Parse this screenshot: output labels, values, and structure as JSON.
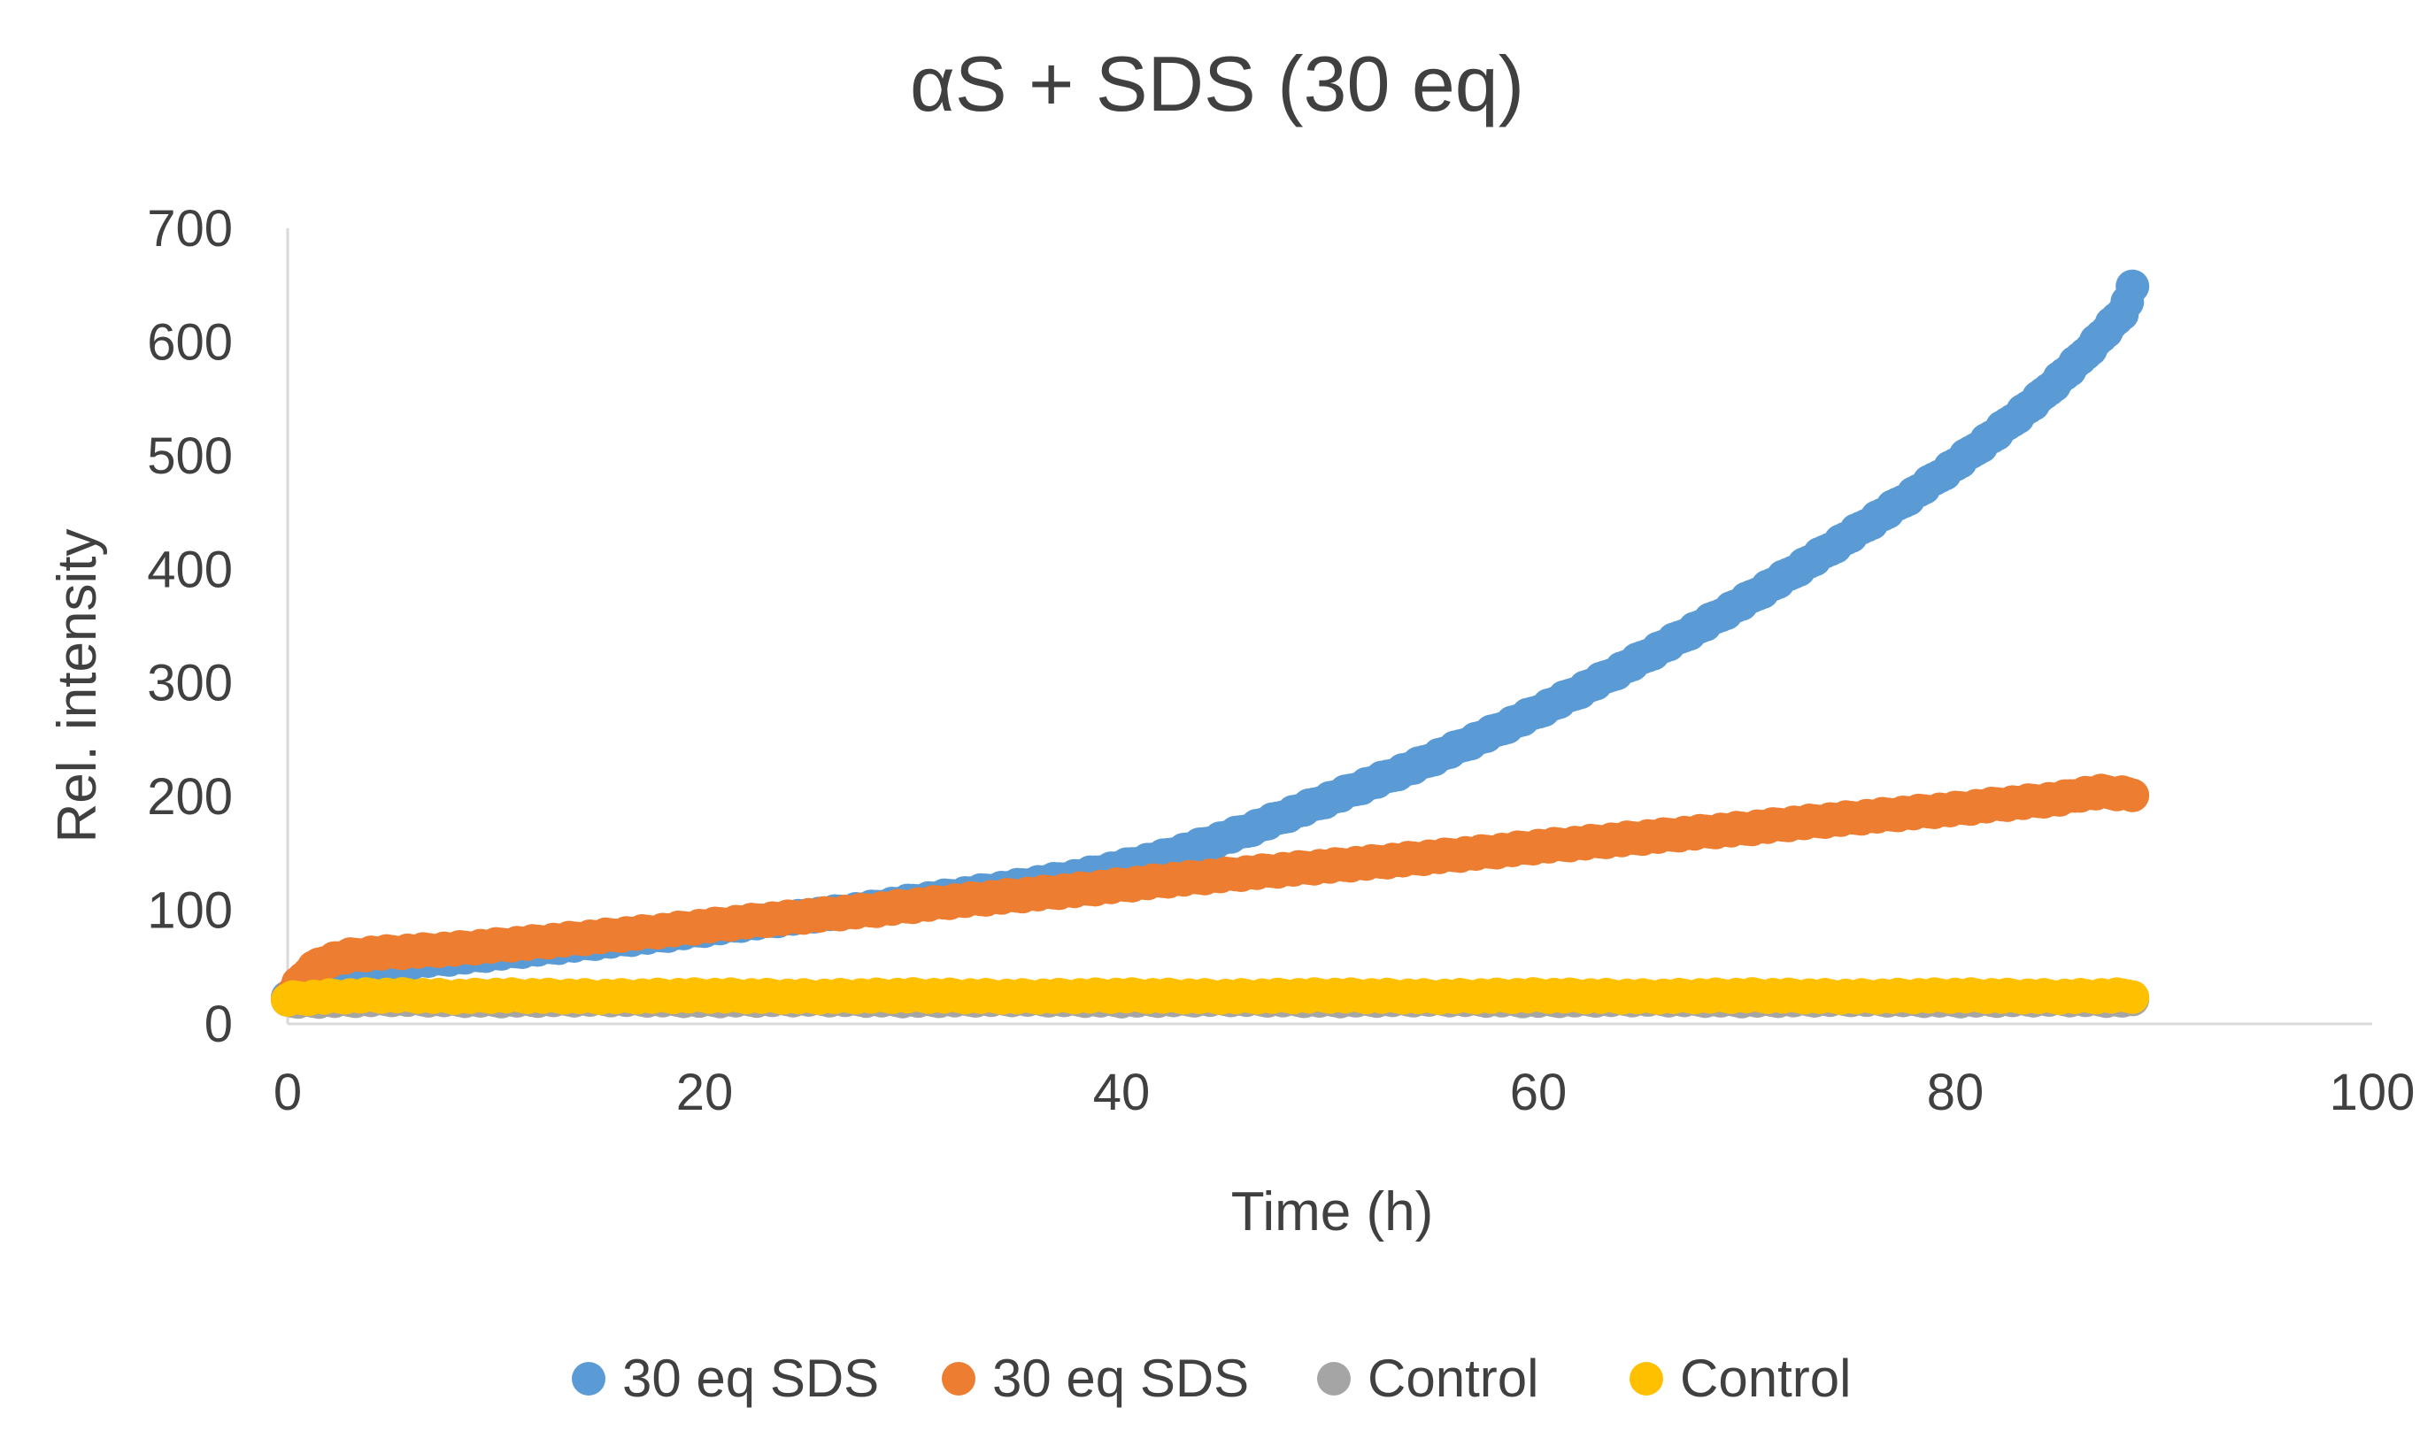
{
  "chart_data": {
    "type": "scatter",
    "title": "αS + SDS (30 eq)",
    "xlabel": "Time (h)",
    "ylabel": "Rel. intensity",
    "xlim": [
      0,
      100
    ],
    "ylim": [
      0,
      700
    ],
    "x_ticks": [
      0,
      20,
      40,
      60,
      80,
      100
    ],
    "y_ticks": [
      0,
      100,
      200,
      300,
      400,
      500,
      600,
      700
    ],
    "grid": false,
    "legend_position": "bottom",
    "series": [
      {
        "name": "30 eq SDS",
        "color": "#5B9BD5",
        "x": [
          0,
          1,
          2,
          3,
          4,
          5,
          6,
          8,
          10,
          12,
          15,
          18,
          20,
          22,
          25,
          28,
          30,
          32,
          35,
          38,
          40,
          42,
          44,
          46,
          48,
          50,
          52,
          54,
          56,
          58,
          60,
          62,
          64,
          66,
          68,
          70,
          72,
          74,
          76,
          78,
          80,
          82,
          84,
          86,
          88,
          88.5
        ],
        "y": [
          22,
          30,
          38,
          45,
          50,
          53,
          55,
          58,
          62,
          66,
          72,
          78,
          83,
          88,
          95,
          102,
          108,
          113,
          121,
          130,
          138,
          147,
          158,
          170,
          184,
          198,
          212,
          226,
          242,
          258,
          275,
          293,
          312,
          332,
          352,
          373,
          395,
          418,
          442,
          466,
          492,
          520,
          550,
          585,
          625,
          648
        ]
      },
      {
        "name": "30 eq SDS",
        "color": "#ED7D31",
        "x": [
          0,
          0.5,
          1,
          1.5,
          2,
          3,
          4,
          5,
          6,
          8,
          10,
          12,
          15,
          18,
          20,
          22,
          25,
          28,
          30,
          32,
          35,
          38,
          40,
          42,
          45,
          48,
          50,
          52,
          55,
          58,
          60,
          62,
          65,
          68,
          70,
          72,
          75,
          78,
          80,
          82,
          85,
          86,
          87,
          88,
          88.5
        ],
        "y": [
          22,
          35,
          45,
          52,
          56,
          60,
          62,
          63,
          64,
          66,
          69,
          72,
          77,
          82,
          86,
          90,
          95,
          100,
          104,
          108,
          113,
          118,
          122,
          126,
          131,
          136,
          139,
          142,
          147,
          152,
          156,
          159,
          164,
          169,
          172,
          176,
          181,
          186,
          189,
          193,
          198,
          202,
          204,
          203,
          202
        ]
      },
      {
        "name": "Control",
        "color": "#A5A5A5",
        "x": [
          0,
          5,
          10,
          15,
          20,
          25,
          30,
          35,
          40,
          45,
          50,
          55,
          60,
          65,
          70,
          75,
          80,
          85,
          88.5
        ],
        "y": [
          20,
          22,
          21,
          22,
          21,
          22,
          21,
          22,
          21,
          22,
          21,
          22,
          21,
          22,
          21,
          22,
          21,
          22,
          21
        ]
      },
      {
        "name": "Control",
        "color": "#FFC000",
        "x": [
          0,
          2,
          4,
          6,
          8,
          10,
          15,
          20,
          25,
          30,
          35,
          40,
          45,
          50,
          55,
          60,
          65,
          70,
          75,
          80,
          85,
          88.5
        ],
        "y": [
          22,
          24,
          25,
          25,
          24,
          25,
          24,
          25,
          24,
          25,
          24,
          25,
          24,
          25,
          24,
          25,
          24,
          25,
          24,
          25,
          24,
          25
        ]
      }
    ]
  }
}
